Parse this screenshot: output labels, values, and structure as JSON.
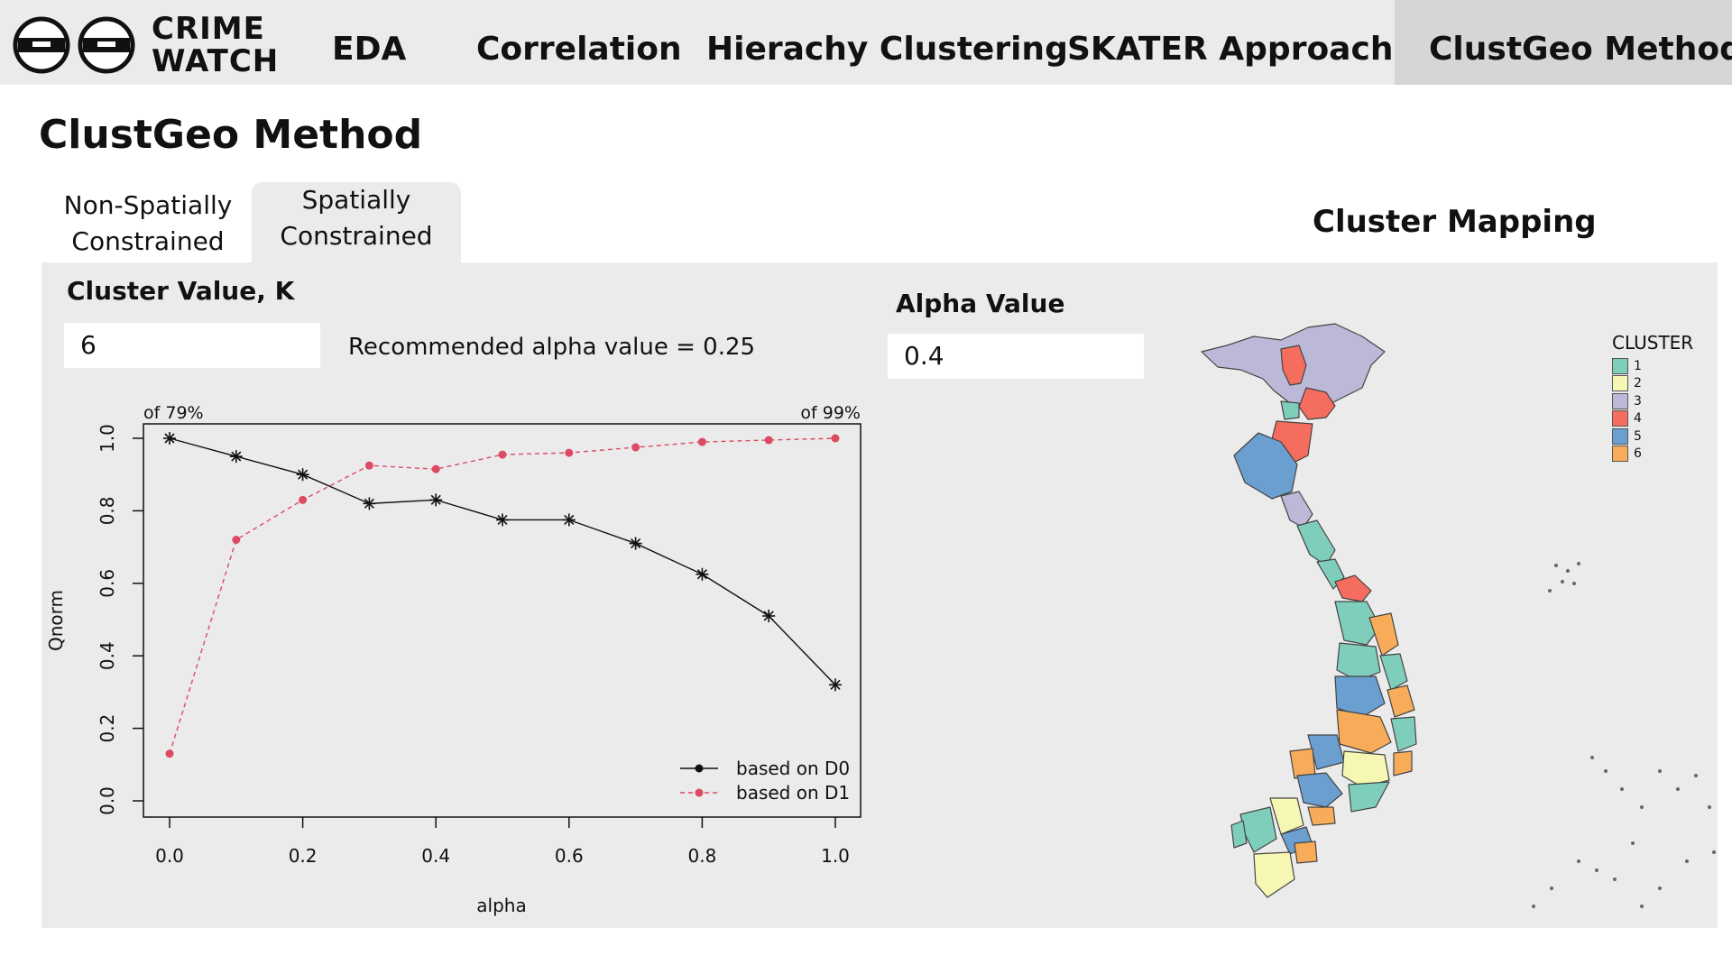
{
  "navbar": {
    "logo_text_line1": "CRIME",
    "logo_text_line2": "WATCH",
    "items": [
      {
        "label": "EDA"
      },
      {
        "label": "Correlation"
      },
      {
        "label": "Hierachy Clustering"
      },
      {
        "label": "SKATER Approach"
      },
      {
        "label": "ClustGeo Method"
      }
    ],
    "active_index": 4
  },
  "page": {
    "title": "ClustGeo Method"
  },
  "tabs": [
    {
      "line1": "Non-Spatially",
      "line2": "Constrained"
    },
    {
      "line1": "Spatially",
      "line2": "Constrained"
    }
  ],
  "controls": {
    "cluster_label": "Cluster Value, K",
    "cluster_value": "6",
    "recommendation": "Recommended alpha value = 0.25",
    "alpha_label": "Alpha Value",
    "alpha_value": "0.4"
  },
  "map": {
    "title": "Cluster Mapping",
    "legend_title": "CLUSTER",
    "legend": [
      {
        "label": "1",
        "color": "#7fcdbb"
      },
      {
        "label": "2",
        "color": "#f7f7b4"
      },
      {
        "label": "3",
        "color": "#bcb8d8"
      },
      {
        "label": "4",
        "color": "#f46d5f"
      },
      {
        "label": "5",
        "color": "#6a9fd0"
      },
      {
        "label": "6",
        "color": "#f8ac5a"
      }
    ]
  },
  "chart_data": {
    "type": "line",
    "xlabel": "alpha",
    "ylabel": "Qnorm",
    "xlim": [
      0,
      1
    ],
    "ylim": [
      0,
      1
    ],
    "x_ticks": [
      "0.0",
      "0.2",
      "0.4",
      "0.6",
      "0.8",
      "1.0"
    ],
    "y_ticks": [
      "0.0",
      "0.2",
      "0.4",
      "0.6",
      "0.8",
      "1.0"
    ],
    "top_left_annotation": "of 79%",
    "top_right_annotation": "of 99%",
    "x": [
      0.0,
      0.1,
      0.2,
      0.3,
      0.4,
      0.5,
      0.6,
      0.7,
      0.8,
      0.9,
      1.0
    ],
    "series": [
      {
        "name": "based on D0",
        "color": "#111111",
        "marker": "asterisk",
        "line": "solid",
        "values": [
          1.0,
          0.95,
          0.9,
          0.82,
          0.83,
          0.775,
          0.775,
          0.71,
          0.625,
          0.51,
          0.32
        ]
      },
      {
        "name": "based on D1",
        "color": "#dc4a64",
        "marker": "dot",
        "line": "dashed",
        "values": [
          0.13,
          0.72,
          0.83,
          0.925,
          0.915,
          0.955,
          0.96,
          0.975,
          0.99,
          0.995,
          1.0
        ]
      }
    ],
    "legend_position": "bottom-right"
  }
}
